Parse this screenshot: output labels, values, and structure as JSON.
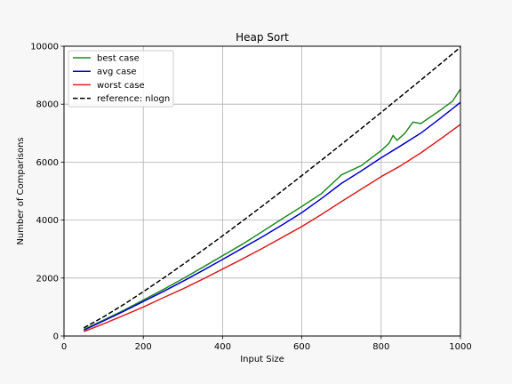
{
  "chart_data": {
    "type": "line",
    "title": "Heap Sort",
    "xlabel": "Input Size",
    "ylabel": "Number of Comparisons",
    "xlim": [
      0,
      1000
    ],
    "ylim": [
      0,
      10000
    ],
    "xticks": [
      0,
      200,
      400,
      600,
      800,
      1000
    ],
    "yticks": [
      0,
      2000,
      4000,
      6000,
      8000,
      10000
    ],
    "grid": true,
    "legend_position": "top-left",
    "series": [
      {
        "name": "best case",
        "color": "#228b22",
        "dash": "solid",
        "x": [
          50,
          100,
          150,
          200,
          250,
          300,
          350,
          400,
          450,
          500,
          550,
          600,
          650,
          700,
          750,
          800,
          820,
          830,
          840,
          860,
          880,
          900,
          950,
          980,
          1000
        ],
        "y": [
          230,
          550,
          880,
          1240,
          1600,
          1980,
          2370,
          2770,
          3170,
          3600,
          4040,
          4470,
          4920,
          5560,
          5880,
          6400,
          6650,
          6920,
          6750,
          7000,
          7380,
          7330,
          7800,
          8100,
          8520
        ]
      },
      {
        "name": "avg case",
        "color": "#0000cd",
        "dash": "solid",
        "x": [
          50,
          100,
          150,
          200,
          250,
          300,
          350,
          400,
          450,
          500,
          550,
          600,
          650,
          700,
          750,
          800,
          850,
          900,
          950,
          1000
        ],
        "y": [
          200,
          520,
          850,
          1190,
          1530,
          1890,
          2260,
          2640,
          3030,
          3420,
          3830,
          4260,
          4750,
          5270,
          5700,
          6150,
          6570,
          7000,
          7520,
          8060
        ]
      },
      {
        "name": "worst case",
        "color": "#dc1e1e",
        "dash": "solid",
        "x": [
          50,
          100,
          150,
          200,
          250,
          300,
          350,
          400,
          450,
          500,
          550,
          600,
          650,
          700,
          750,
          800,
          850,
          900,
          950,
          1000
        ],
        "y": [
          150,
          420,
          710,
          1000,
          1320,
          1630,
          1960,
          2310,
          2660,
          3020,
          3400,
          3780,
          4200,
          4640,
          5070,
          5500,
          5880,
          6320,
          6800,
          7300
        ]
      },
      {
        "name": "reference: nlogn",
        "color": "#000000",
        "dash": "dashed",
        "x": [
          50,
          100,
          150,
          200,
          250,
          300,
          350,
          400,
          450,
          500,
          550,
          600,
          650,
          700,
          750,
          800,
          850,
          900,
          950,
          1000
        ],
        "y": [
          282,
          664,
          1084,
          1529,
          1991,
          2469,
          2958,
          3458,
          3967,
          4483,
          5006,
          5537,
          6073,
          6616,
          7164,
          7715,
          8272,
          8832,
          9397,
          9966
        ]
      }
    ]
  }
}
